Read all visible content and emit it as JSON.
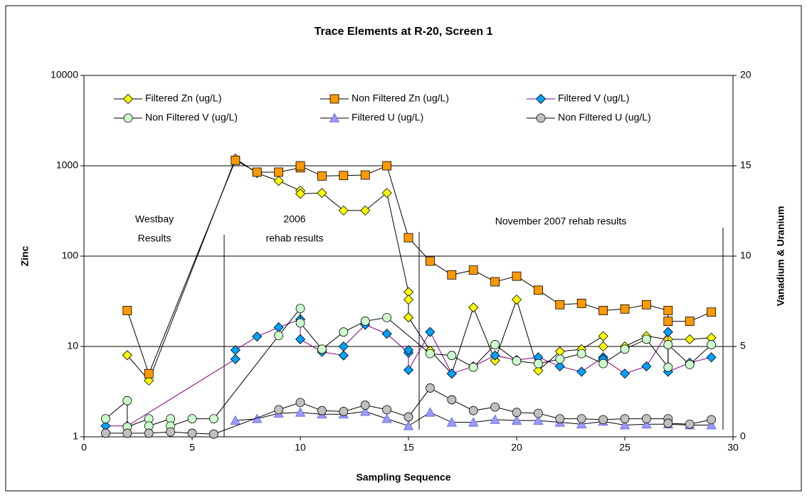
{
  "chart_data": {
    "type": "line",
    "title": "Trace Elements at R-20, Screen 1",
    "x_label": "Sampling Sequence",
    "y_label": "Zinc",
    "y2_label": "Vanadium & Uranium",
    "xlim": [
      0,
      30
    ],
    "xticks": [
      0,
      5,
      10,
      15,
      20,
      25,
      30
    ],
    "ylim": [
      1,
      10000
    ],
    "yticks": [
      1,
      10,
      100,
      1000,
      10000
    ],
    "log_y": true,
    "grid": true,
    "y2lim": [
      0,
      20
    ],
    "y2ticks": [
      0,
      5,
      10,
      15,
      20
    ],
    "annotations": [
      "Westbay",
      "Results",
      "2006",
      "rehab results",
      "November 2007 rehab results"
    ],
    "series": [
      {
        "name": "Filtered Zn (ug/L)",
        "color": "#ffff00",
        "line_color": "#000000",
        "marker": "diamond",
        "x": [
          2,
          3,
          7,
          8,
          9,
          10,
          10,
          11,
          12,
          13,
          14,
          15,
          15,
          15,
          16,
          17,
          18,
          19,
          20,
          21,
          22,
          23,
          24,
          24,
          25,
          26,
          27,
          28,
          29
        ],
        "values": [
          8,
          4.2,
          1200,
          830,
          680,
          530,
          490,
          500,
          320,
          320,
          500,
          40,
          33,
          21,
          9,
          5,
          27,
          7,
          33,
          5.4,
          8.8,
          9.3,
          13,
          10,
          10,
          13,
          12,
          12,
          12.5
        ]
      },
      {
        "name": "Non Filtered Zn (ug/L)",
        "color": "#ff9900",
        "line_color": "#000000",
        "marker": "square",
        "x": [
          2,
          3,
          7,
          8,
          9,
          10,
          10,
          11,
          12,
          13,
          14,
          15,
          16,
          17,
          18,
          19,
          20,
          21,
          22,
          23,
          24,
          25,
          26,
          27,
          27,
          28,
          29
        ],
        "values": [
          25,
          5,
          1150,
          850,
          850,
          950,
          1000,
          770,
          780,
          790,
          1000,
          160,
          88,
          62,
          70,
          52,
          60,
          42,
          29,
          30,
          25,
          26,
          29,
          25,
          19,
          19,
          24
        ]
      },
      {
        "name": "Filtered V (ug/L)",
        "color": "#00a0ff",
        "line_color": "#800080",
        "marker": "diamond",
        "axis": "y2",
        "x": [
          1,
          2,
          7,
          7,
          8,
          9,
          10,
          10,
          11,
          12,
          12,
          13,
          14,
          15,
          15,
          15,
          16,
          17,
          18,
          19,
          20,
          21,
          22,
          23,
          24,
          24,
          25,
          26,
          27,
          27,
          28,
          29
        ],
        "values": [
          0.6,
          0.6,
          4.3,
          4.8,
          5.55,
          6.06,
          6.5,
          5.4,
          4.7,
          4.5,
          5,
          6.2,
          5.7,
          4.65,
          4.8,
          3.7,
          5.8,
          3.5,
          3.9,
          4.5,
          4.25,
          4.4,
          3.9,
          3.6,
          4.4,
          4.3,
          3.5,
          3.9,
          5.8,
          3.6,
          4.1,
          4.4
        ]
      },
      {
        "name": "Non Filtered V (ug/L)",
        "color": "#ccffcc",
        "line_color": "#000000",
        "marker": "circle",
        "axis": "y2",
        "x": [
          1,
          2,
          2,
          3,
          3,
          4,
          4,
          5,
          6,
          9,
          10,
          10,
          11,
          12,
          13,
          14,
          16,
          17,
          18,
          19,
          20,
          21,
          22,
          23,
          24,
          25,
          26,
          27,
          27,
          28,
          29
        ],
        "values": [
          1,
          2,
          0.55,
          1,
          0.6,
          1,
          0.6,
          1,
          1,
          5.6,
          7.1,
          6.3,
          4.85,
          5.8,
          6.4,
          6.6,
          4.6,
          4.5,
          3.85,
          5.1,
          4.2,
          4.05,
          4.3,
          4.6,
          4.05,
          4.85,
          5.4,
          3.85,
          5.1,
          4,
          5.1
        ]
      },
      {
        "name": "Filtered U (ug/L)",
        "color": "#9999ff",
        "line_color": "#000000",
        "marker": "triangle",
        "axis": "y2",
        "x": [
          7,
          8,
          9,
          10,
          11,
          12,
          13,
          14,
          15,
          16,
          17,
          18,
          19,
          20,
          21,
          22,
          23,
          24,
          25,
          26,
          27,
          28,
          29
        ],
        "values": [
          0.9,
          1,
          1.3,
          1.35,
          1.25,
          1.25,
          1.4,
          1,
          0.6,
          1.35,
          0.8,
          0.8,
          0.95,
          0.9,
          0.9,
          0.8,
          0.7,
          0.85,
          0.65,
          0.7,
          0.7,
          0.65,
          0.65
        ]
      },
      {
        "name": "Non Filtered U (ug/L)",
        "color": "#c0c0c0",
        "line_color": "#000000",
        "marker": "circle",
        "axis": "y2",
        "x": [
          1,
          2,
          3,
          4,
          5,
          6,
          9,
          10,
          11,
          12,
          13,
          14,
          15,
          16,
          17,
          18,
          19,
          20,
          21,
          22,
          23,
          24,
          25,
          26,
          27,
          27,
          28,
          29
        ],
        "values": [
          0.2,
          0.2,
          0.2,
          0.27,
          0.2,
          0.15,
          1.5,
          1.9,
          1.45,
          1.4,
          1.75,
          1.5,
          1.1,
          2.7,
          2.05,
          1.45,
          1.65,
          1.35,
          1.3,
          1,
          1,
          0.95,
          1,
          1,
          1,
          0.75,
          0.7,
          0.95
        ]
      }
    ]
  }
}
